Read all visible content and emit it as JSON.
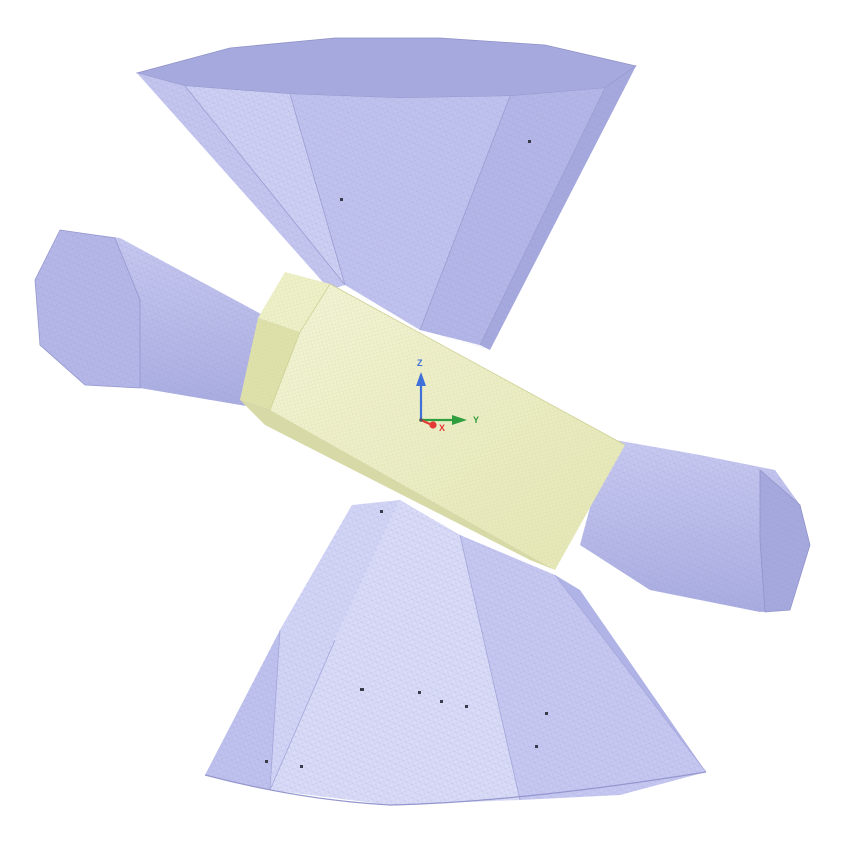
{
  "scene": {
    "colors": {
      "mesh_body": "#b9bcea",
      "mesh_body_dark": "#9c9fd4",
      "mesh_body_light": "#d4d6f4",
      "mesh_top": "#a3a6dc",
      "bar_light": "#f1f2cf",
      "bar_mid": "#e6e8b9",
      "bar_shadow": "#d3d5a2",
      "axis_x": "#e53935",
      "axis_y": "#2e9e3e",
      "axis_z": "#3f6fd9"
    }
  },
  "axis_triad": {
    "x_label": "X",
    "y_label": "Y",
    "z_label": "Z"
  }
}
